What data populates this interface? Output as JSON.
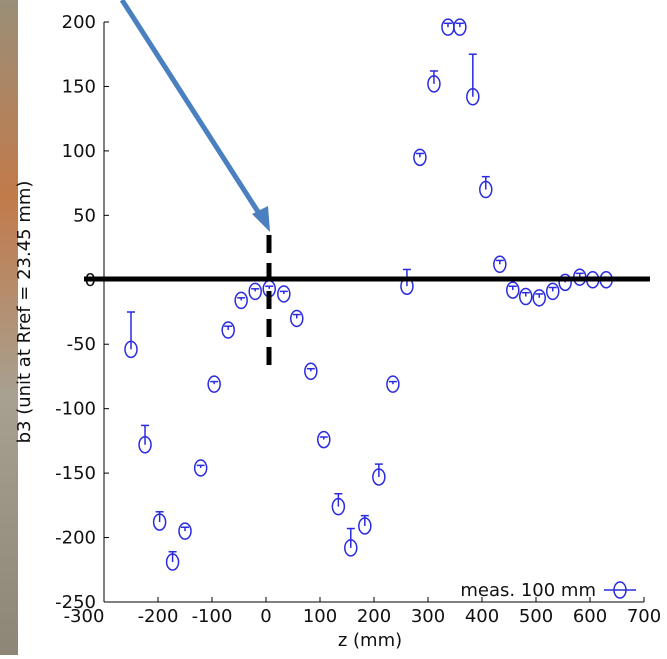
{
  "chart_data": {
    "type": "scatter",
    "ylabel": "b3 (unit at Rref = 23.45 mm)",
    "xlabel": "z (mm)",
    "series": [
      {
        "name": "meas. 100 mm",
        "color": "#2a2adf",
        "x": [
          -250,
          -224,
          -197,
          -173,
          -150,
          -121,
          -96,
          -70,
          -46,
          -20,
          6,
          33,
          57,
          83,
          107,
          134,
          157,
          183,
          209,
          235,
          261,
          285,
          311,
          337,
          359,
          383,
          407,
          433,
          457,
          481,
          506,
          531,
          554,
          581,
          605,
          630
        ],
        "values": [
          -54,
          -128,
          -188,
          -219,
          -195,
          -146,
          -81,
          -39,
          -16,
          -9,
          -7,
          -11,
          -30,
          -71,
          -124,
          -176,
          -208,
          -191,
          -153,
          -81,
          -5,
          95,
          152,
          196,
          196,
          142,
          70,
          12,
          -8,
          -13,
          -14,
          -9,
          -2,
          2,
          0,
          0
        ],
        "errors": [
          29,
          15,
          8,
          8,
          3,
          2,
          2,
          3,
          2,
          2,
          2,
          2,
          3,
          2,
          2,
          10,
          15,
          8,
          10,
          2,
          13,
          3,
          10,
          3,
          3,
          33,
          10,
          3,
          3,
          3,
          3,
          3,
          3,
          3,
          2,
          2
        ]
      }
    ],
    "xlim": [
      -300,
      700
    ],
    "xticks": [
      -300,
      -200,
      -100,
      0,
      100,
      200,
      300,
      400,
      500,
      600,
      700
    ],
    "ylim": [
      -250,
      200
    ],
    "yticks": [
      -250,
      -200,
      -150,
      -100,
      -50,
      0,
      50,
      100,
      150,
      200
    ],
    "legend": "lower right"
  }
}
